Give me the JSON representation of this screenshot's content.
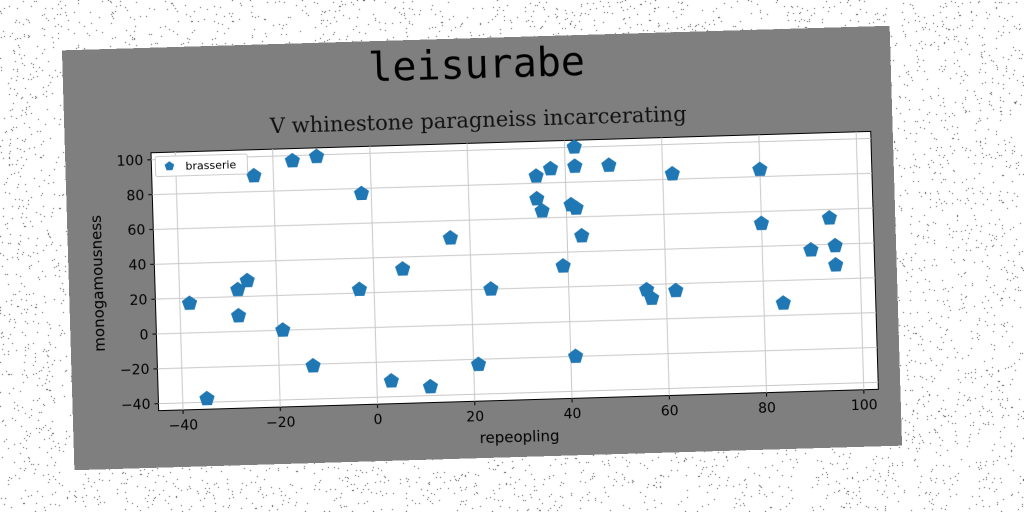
{
  "chart_data": {
    "type": "scatter",
    "title": "leisurabe",
    "subtitle": "V whinestone paragneiss incarcerating",
    "xlabel": "repeopling",
    "ylabel": "monogamousness",
    "xlim": [
      -45,
      103
    ],
    "ylim": [
      -44,
      104
    ],
    "xticks": [
      -40,
      -20,
      0,
      20,
      40,
      60,
      80,
      100
    ],
    "yticks": [
      -40,
      -20,
      0,
      20,
      40,
      60,
      80,
      100
    ],
    "grid": true,
    "legend_position": "top-left",
    "series": [
      {
        "name": "brasserie",
        "color": "#1f77b4",
        "marker": "pentagon",
        "points": [
          [
            -38,
            17
          ],
          [
            -35,
            -38
          ],
          [
            -28,
            24
          ],
          [
            -28,
            9
          ],
          [
            -26,
            29
          ],
          [
            -24,
            89
          ],
          [
            -19,
            0
          ],
          [
            -16,
            97
          ],
          [
            -13,
            -21
          ],
          [
            -11,
            99
          ],
          [
            -3,
            22
          ],
          [
            -2,
            77
          ],
          [
            3,
            -31
          ],
          [
            6,
            33
          ],
          [
            11,
            -35
          ],
          [
            16,
            50
          ],
          [
            21,
            -23
          ],
          [
            24,
            20
          ],
          [
            34,
            84
          ],
          [
            34,
            71
          ],
          [
            35,
            64
          ],
          [
            37,
            88
          ],
          [
            39,
            32
          ],
          [
            41,
            67
          ],
          [
            41,
            -20
          ],
          [
            42,
            65
          ],
          [
            42,
            100
          ],
          [
            42,
            89
          ],
          [
            43,
            49
          ],
          [
            49,
            89
          ],
          [
            56,
            17
          ],
          [
            57,
            12
          ],
          [
            62,
            83
          ],
          [
            62,
            16
          ],
          [
            80,
            53
          ],
          [
            80,
            84
          ],
          [
            84,
            7
          ],
          [
            90,
            37
          ],
          [
            94,
            55
          ],
          [
            95,
            39
          ],
          [
            95,
            28
          ]
        ]
      }
    ]
  }
}
